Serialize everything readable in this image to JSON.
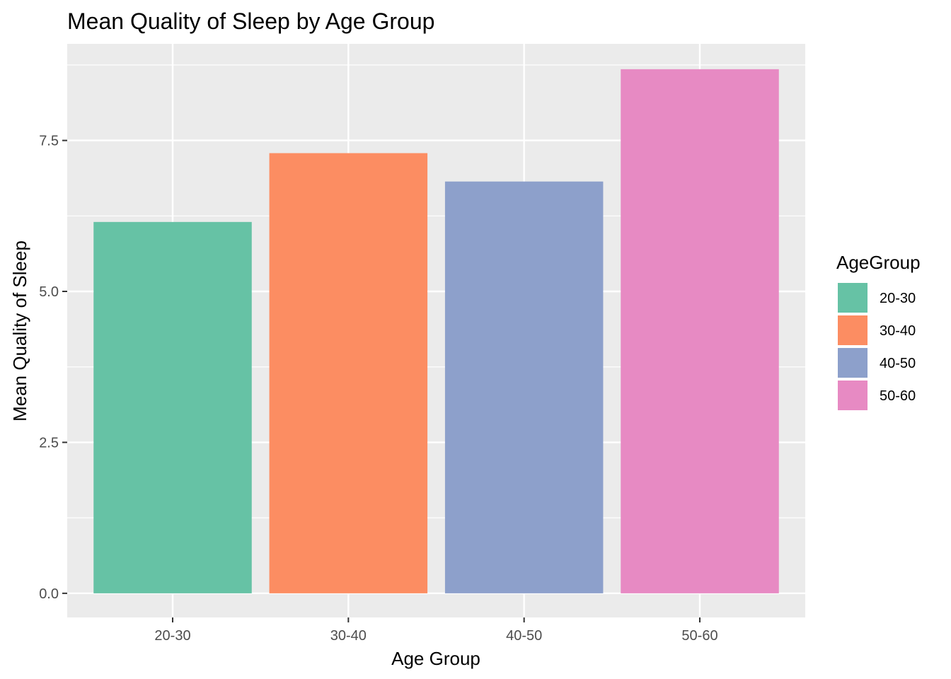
{
  "chart_data": {
    "type": "bar",
    "title": "Mean Quality of Sleep by Age Group",
    "xlabel": "Age Group",
    "ylabel": "Mean Quality of Sleep",
    "categories": [
      "20-30",
      "30-40",
      "40-50",
      "50-60"
    ],
    "values": [
      6.15,
      7.29,
      6.82,
      8.68
    ],
    "colors": [
      "#66c2a5",
      "#fc8d62",
      "#8da0cb",
      "#e78ac3"
    ],
    "yticks": [
      0,
      2.5,
      5,
      7.5
    ],
    "ytick_labels": [
      "0.0",
      "2.5",
      "5.0",
      "7.5"
    ],
    "ylim": [
      -0.4,
      9.1
    ],
    "grid": true,
    "panel_background": "#ebebeb",
    "gridline_color": "#ffffff",
    "legend": {
      "title": "AgeGroup",
      "position": "right",
      "entries": [
        "20-30",
        "30-40",
        "40-50",
        "50-60"
      ]
    }
  }
}
